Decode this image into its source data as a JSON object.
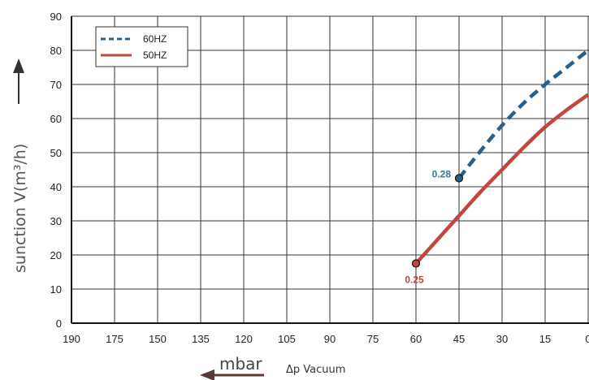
{
  "chart_data": {
    "type": "line",
    "ylabel": "sunction V(m³/h)",
    "xlabel_unit": "mbar",
    "xlabel": "Δp  Vacuum",
    "x_ticks": [
      "190",
      "175",
      "150",
      "135",
      "120",
      "105",
      "90",
      "75",
      "60",
      "45",
      "30",
      "15",
      "0"
    ],
    "y_ticks": [
      "0",
      "10",
      "20",
      "30",
      "40",
      "50",
      "60",
      "70",
      "80",
      "90"
    ],
    "ylim": [
      0,
      90
    ],
    "grid": true,
    "legend_position": "top-left",
    "series": [
      {
        "name": "60HZ",
        "style": "dashed",
        "color": "#2d5f86",
        "x": [
          9.0,
          9.5,
          10,
          10.5,
          11,
          11.5,
          12
        ],
        "y": [
          42.5,
          50.5,
          58,
          64.5,
          70,
          75,
          80
        ],
        "start_label": "0.28"
      },
      {
        "name": "50HZ",
        "style": "solid",
        "color": "#c0473b",
        "x": [
          8.0,
          8.5,
          9,
          9.5,
          10,
          10.5,
          11,
          11.5,
          12
        ],
        "y": [
          17.5,
          24.5,
          31.5,
          38.5,
          45,
          51.5,
          57.5,
          62.5,
          67
        ]
      }
    ],
    "annotations": [
      {
        "text": "0.28",
        "color": "#2d7a9a"
      },
      {
        "text": "0.25",
        "color": "#c0473b"
      }
    ]
  }
}
